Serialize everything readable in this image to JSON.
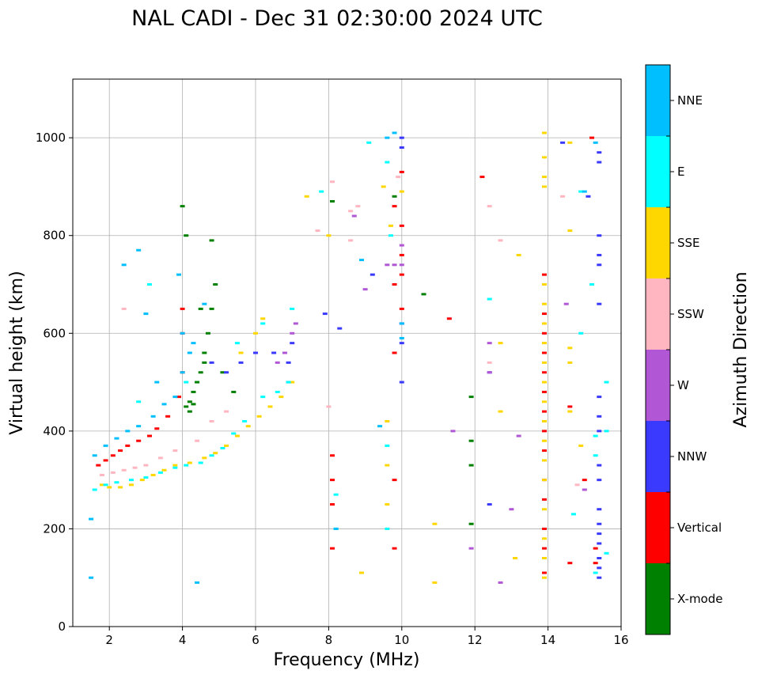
{
  "chart_data": {
    "type": "scatter",
    "title": "NAL CADI - Dec 31 02:30:00 2024 UTC",
    "xlabel": "Frequency (MHz)",
    "ylabel": "Virtual height (km)",
    "xlim": [
      1,
      16
    ],
    "ylim": [
      0,
      1120
    ],
    "x_ticks": [
      2,
      4,
      6,
      8,
      10,
      12,
      14,
      16
    ],
    "y_ticks": [
      0,
      200,
      400,
      600,
      800,
      1000
    ],
    "grid": true,
    "colorbar": {
      "title": "Azimuth Direction",
      "categories": [
        {
          "name": "X-mode",
          "color": "#008000"
        },
        {
          "name": "Vertical",
          "color": "#ff0000"
        },
        {
          "name": "NNW",
          "color": "#3a3aff"
        },
        {
          "name": "W",
          "color": "#b157d6"
        },
        {
          "name": "SSW",
          "color": "#ffb6c1"
        },
        {
          "name": "SSE",
          "color": "#ffd700"
        },
        {
          "name": "E",
          "color": "#00ffff"
        },
        {
          "name": "NNE",
          "color": "#00bfff"
        }
      ]
    },
    "series": [
      {
        "name": "X-mode",
        "points": [
          [
            4.1,
            450
          ],
          [
            4.2,
            460
          ],
          [
            4.3,
            480
          ],
          [
            4.5,
            520
          ],
          [
            4.6,
            560
          ],
          [
            4.7,
            600
          ],
          [
            4.8,
            650
          ],
          [
            4.0,
            860
          ],
          [
            4.1,
            800
          ],
          [
            4.8,
            790
          ],
          [
            4.5,
            650
          ],
          [
            4.2,
            440
          ],
          [
            4.3,
            455
          ],
          [
            4.6,
            540
          ],
          [
            5.1,
            520
          ],
          [
            5.4,
            480
          ],
          [
            8.1,
            870
          ],
          [
            9.8,
            880
          ],
          [
            10.6,
            680
          ],
          [
            11.9,
            470
          ],
          [
            11.9,
            380
          ],
          [
            11.9,
            330
          ],
          [
            11.9,
            210
          ],
          [
            4.4,
            500
          ],
          [
            4.9,
            700
          ]
        ]
      },
      {
        "name": "Vertical",
        "points": [
          [
            1.7,
            330
          ],
          [
            1.9,
            340
          ],
          [
            2.1,
            350
          ],
          [
            2.3,
            360
          ],
          [
            2.5,
            370
          ],
          [
            2.8,
            380
          ],
          [
            3.1,
            390
          ],
          [
            3.3,
            405
          ],
          [
            3.6,
            430
          ],
          [
            3.9,
            470
          ],
          [
            4.0,
            520
          ],
          [
            4.0,
            600
          ],
          [
            4.0,
            650
          ],
          [
            8.1,
            350
          ],
          [
            8.1,
            300
          ],
          [
            8.1,
            250
          ],
          [
            8.1,
            160
          ],
          [
            9.8,
            860
          ],
          [
            9.8,
            700
          ],
          [
            9.8,
            560
          ],
          [
            9.8,
            300
          ],
          [
            9.8,
            160
          ],
          [
            10.0,
            930
          ],
          [
            10.0,
            820
          ],
          [
            10.0,
            760
          ],
          [
            10.0,
            720
          ],
          [
            10.0,
            650
          ],
          [
            13.9,
            720
          ],
          [
            13.9,
            640
          ],
          [
            13.9,
            600
          ],
          [
            13.9,
            560
          ],
          [
            13.9,
            520
          ],
          [
            13.9,
            480
          ],
          [
            13.9,
            440
          ],
          [
            13.9,
            400
          ],
          [
            13.9,
            360
          ],
          [
            13.9,
            300
          ],
          [
            13.9,
            260
          ],
          [
            13.9,
            200
          ],
          [
            13.9,
            160
          ],
          [
            13.9,
            110
          ],
          [
            15.2,
            1000
          ],
          [
            15.3,
            160
          ],
          [
            15.3,
            130
          ],
          [
            15.0,
            300
          ],
          [
            14.6,
            450
          ],
          [
            14.6,
            130
          ],
          [
            12.2,
            920
          ],
          [
            11.3,
            630
          ]
        ]
      },
      {
        "name": "NNW",
        "points": [
          [
            4.8,
            540
          ],
          [
            5.2,
            520
          ],
          [
            5.6,
            540
          ],
          [
            6.0,
            560
          ],
          [
            6.5,
            560
          ],
          [
            6.9,
            540
          ],
          [
            7.0,
            580
          ],
          [
            10.0,
            1000
          ],
          [
            10.0,
            980
          ],
          [
            10.0,
            620
          ],
          [
            10.0,
            580
          ],
          [
            10.0,
            500
          ],
          [
            15.4,
            970
          ],
          [
            15.4,
            950
          ],
          [
            15.4,
            800
          ],
          [
            15.4,
            760
          ],
          [
            15.4,
            740
          ],
          [
            15.4,
            660
          ],
          [
            15.4,
            470
          ],
          [
            15.4,
            430
          ],
          [
            15.4,
            400
          ],
          [
            15.4,
            330
          ],
          [
            15.4,
            300
          ],
          [
            15.4,
            240
          ],
          [
            15.4,
            210
          ],
          [
            15.4,
            190
          ],
          [
            15.4,
            170
          ],
          [
            15.4,
            140
          ],
          [
            15.4,
            120
          ],
          [
            15.4,
            100
          ],
          [
            12.4,
            520
          ],
          [
            12.4,
            250
          ],
          [
            8.3,
            610
          ],
          [
            7.9,
            640
          ],
          [
            9.2,
            720
          ],
          [
            14.4,
            990
          ],
          [
            15.1,
            880
          ]
        ]
      },
      {
        "name": "W",
        "points": [
          [
            6.6,
            540
          ],
          [
            6.8,
            560
          ],
          [
            7.0,
            600
          ],
          [
            7.1,
            620
          ],
          [
            6.9,
            500
          ],
          [
            9.0,
            690
          ],
          [
            9.8,
            740
          ],
          [
            10.0,
            780
          ],
          [
            10.0,
            740
          ],
          [
            12.4,
            580
          ],
          [
            12.4,
            520
          ],
          [
            13.2,
            390
          ],
          [
            13.0,
            240
          ],
          [
            12.7,
            90
          ],
          [
            14.5,
            660
          ],
          [
            15.0,
            280
          ],
          [
            11.9,
            160
          ],
          [
            11.4,
            400
          ],
          [
            8.7,
            840
          ],
          [
            9.6,
            740
          ]
        ]
      },
      {
        "name": "SSW",
        "points": [
          [
            1.8,
            310
          ],
          [
            2.1,
            315
          ],
          [
            2.4,
            320
          ],
          [
            2.7,
            325
          ],
          [
            3.0,
            330
          ],
          [
            3.4,
            345
          ],
          [
            3.8,
            360
          ],
          [
            4.4,
            380
          ],
          [
            4.8,
            420
          ],
          [
            5.2,
            440
          ],
          [
            2.4,
            650
          ],
          [
            8.0,
            450
          ],
          [
            8.6,
            790
          ],
          [
            8.8,
            860
          ],
          [
            8.6,
            850
          ],
          [
            8.1,
            910
          ],
          [
            12.4,
            860
          ],
          [
            12.4,
            540
          ],
          [
            14.4,
            880
          ],
          [
            14.8,
            290
          ],
          [
            9.9,
            920
          ],
          [
            7.7,
            810
          ],
          [
            12.7,
            790
          ]
        ]
      },
      {
        "name": "SSE",
        "points": [
          [
            1.8,
            290
          ],
          [
            2.0,
            285
          ],
          [
            2.3,
            285
          ],
          [
            2.6,
            290
          ],
          [
            2.9,
            300
          ],
          [
            3.2,
            310
          ],
          [
            3.5,
            320
          ],
          [
            3.8,
            330
          ],
          [
            4.2,
            335
          ],
          [
            4.6,
            345
          ],
          [
            4.9,
            355
          ],
          [
            5.2,
            370
          ],
          [
            5.5,
            390
          ],
          [
            5.8,
            410
          ],
          [
            6.1,
            430
          ],
          [
            6.4,
            450
          ],
          [
            6.7,
            470
          ],
          [
            7.0,
            500
          ],
          [
            5.6,
            560
          ],
          [
            6.0,
            600
          ],
          [
            6.2,
            630
          ],
          [
            8.0,
            800
          ],
          [
            9.5,
            900
          ],
          [
            9.7,
            820
          ],
          [
            10.0,
            890
          ],
          [
            13.9,
            1010
          ],
          [
            13.9,
            960
          ],
          [
            13.9,
            920
          ],
          [
            13.9,
            900
          ],
          [
            13.9,
            700
          ],
          [
            13.9,
            660
          ],
          [
            13.9,
            620
          ],
          [
            13.9,
            580
          ],
          [
            13.9,
            540
          ],
          [
            13.9,
            500
          ],
          [
            13.9,
            460
          ],
          [
            13.9,
            420
          ],
          [
            13.9,
            380
          ],
          [
            13.9,
            340
          ],
          [
            13.9,
            300
          ],
          [
            13.9,
            240
          ],
          [
            13.9,
            180
          ],
          [
            13.9,
            140
          ],
          [
            13.9,
            100
          ],
          [
            14.6,
            810
          ],
          [
            14.6,
            570
          ],
          [
            14.6,
            540
          ],
          [
            14.6,
            440
          ],
          [
            14.6,
            990
          ],
          [
            12.7,
            580
          ],
          [
            12.7,
            440
          ],
          [
            13.1,
            140
          ],
          [
            13.2,
            760
          ],
          [
            10.9,
            210
          ],
          [
            10.9,
            90
          ],
          [
            8.9,
            110
          ],
          [
            9.6,
            420
          ],
          [
            9.6,
            330
          ],
          [
            9.6,
            250
          ],
          [
            14.9,
            370
          ],
          [
            7.4,
            880
          ]
        ]
      },
      {
        "name": "E",
        "points": [
          [
            1.6,
            280
          ],
          [
            1.9,
            290
          ],
          [
            2.2,
            295
          ],
          [
            2.6,
            300
          ],
          [
            3.0,
            305
          ],
          [
            3.4,
            315
          ],
          [
            3.8,
            325
          ],
          [
            4.1,
            330
          ],
          [
            4.5,
            335
          ],
          [
            4.8,
            350
          ],
          [
            5.1,
            365
          ],
          [
            5.4,
            395
          ],
          [
            5.7,
            420
          ],
          [
            6.2,
            470
          ],
          [
            6.6,
            480
          ],
          [
            6.9,
            500
          ],
          [
            5.5,
            580
          ],
          [
            6.2,
            620
          ],
          [
            7.8,
            890
          ],
          [
            9.1,
            990
          ],
          [
            9.6,
            950
          ],
          [
            9.7,
            800
          ],
          [
            12.4,
            670
          ],
          [
            14.9,
            890
          ],
          [
            14.9,
            600
          ],
          [
            15.2,
            700
          ],
          [
            15.6,
            500
          ],
          [
            15.3,
            390
          ],
          [
            15.3,
            350
          ],
          [
            15.6,
            400
          ],
          [
            15.6,
            150
          ],
          [
            14.7,
            230
          ],
          [
            15.3,
            110
          ],
          [
            9.6,
            370
          ],
          [
            9.6,
            200
          ],
          [
            8.2,
            200
          ],
          [
            8.2,
            270
          ],
          [
            7.0,
            650
          ],
          [
            4.1,
            500
          ],
          [
            2.8,
            460
          ],
          [
            3.1,
            700
          ]
        ]
      },
      {
        "name": "NNE",
        "points": [
          [
            1.6,
            350
          ],
          [
            1.9,
            370
          ],
          [
            2.2,
            385
          ],
          [
            2.5,
            400
          ],
          [
            2.8,
            410
          ],
          [
            3.2,
            430
          ],
          [
            3.5,
            455
          ],
          [
            3.8,
            470
          ],
          [
            4.0,
            520
          ],
          [
            4.2,
            560
          ],
          [
            3.3,
            500
          ],
          [
            2.4,
            740
          ],
          [
            2.8,
            770
          ],
          [
            3.9,
            720
          ],
          [
            4.0,
            600
          ],
          [
            4.3,
            580
          ],
          [
            1.5,
            100
          ],
          [
            1.5,
            220
          ],
          [
            4.4,
            90
          ],
          [
            9.8,
            1010
          ],
          [
            10.0,
            620
          ],
          [
            10.0,
            590
          ],
          [
            8.9,
            750
          ],
          [
            9.6,
            1000
          ],
          [
            9.4,
            410
          ],
          [
            8.2,
            200
          ],
          [
            15.0,
            890
          ],
          [
            15.3,
            990
          ],
          [
            4.6,
            660
          ],
          [
            3.0,
            640
          ]
        ]
      }
    ]
  }
}
